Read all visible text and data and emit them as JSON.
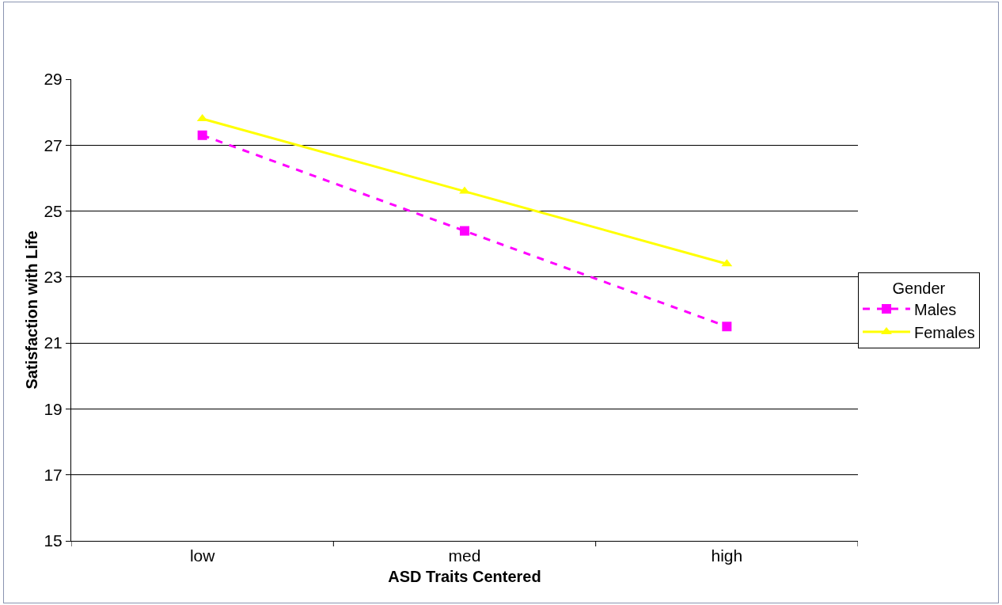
{
  "chart_data": {
    "type": "line",
    "xlabel": "ASD Traits Centered",
    "ylabel": "Satisfaction with Life",
    "legend_title": "Gender",
    "categories": [
      "low",
      "med",
      "high"
    ],
    "series": [
      {
        "name": "Males",
        "color": "#ff00ff",
        "values": [
          27.3,
          24.4,
          21.5
        ],
        "marker": "square",
        "line_style": "dashed"
      },
      {
        "name": "Females",
        "color": "#ffff00",
        "values": [
          27.8,
          25.6,
          23.4
        ],
        "marker": "triangle",
        "line_style": "solid"
      }
    ],
    "ylim": [
      15,
      29
    ],
    "yticks": [
      15,
      17,
      19,
      21,
      23,
      25,
      27,
      29
    ],
    "grid": "y",
    "legend": "right"
  }
}
